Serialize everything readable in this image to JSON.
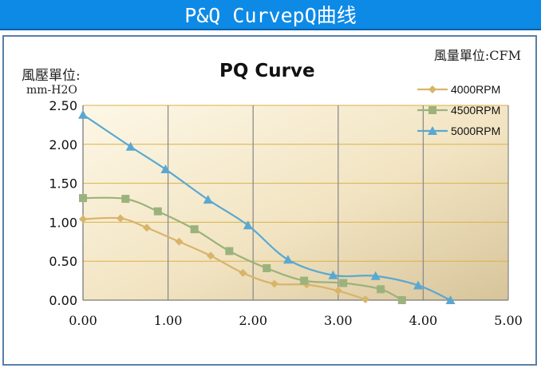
{
  "header": {
    "title": "P&Q CurvepQ曲线"
  },
  "chart_data": {
    "type": "line",
    "title": "PQ Curve",
    "ylabel_line1": "風壓單位:",
    "ylabel_line2": "mm-H2O",
    "unit_label": "風量單位:CFM",
    "xlim": [
      0,
      5
    ],
    "ylim": [
      0,
      2.5
    ],
    "x_ticks": [
      "0.00",
      "1.00",
      "2.00",
      "3.00",
      "4.00",
      "5.00"
    ],
    "y_ticks": [
      "0.00",
      "0.50",
      "1.00",
      "1.50",
      "2.00",
      "2.50"
    ],
    "legend_position": "top-right",
    "series": [
      {
        "name": "4000RPM",
        "color": "#d8b46a",
        "marker": "diamond",
        "x": [
          0.0,
          0.44,
          0.75,
          1.13,
          1.5,
          1.88,
          2.25,
          2.63,
          3.0,
          3.32
        ],
        "y": [
          1.04,
          1.05,
          0.93,
          0.75,
          0.57,
          0.35,
          0.21,
          0.2,
          0.12,
          0.01
        ]
      },
      {
        "name": "4500RPM",
        "color": "#9cb27c",
        "marker": "square",
        "x": [
          0.0,
          0.5,
          0.88,
          1.31,
          1.72,
          2.16,
          2.6,
          3.06,
          3.5,
          3.75
        ],
        "y": [
          1.31,
          1.3,
          1.14,
          0.91,
          0.63,
          0.41,
          0.25,
          0.22,
          0.14,
          0.0
        ]
      },
      {
        "name": "5000RPM",
        "color": "#5aa8d2",
        "marker": "triangle",
        "x": [
          0.0,
          0.56,
          0.97,
          1.47,
          1.94,
          2.41,
          2.94,
          3.44,
          3.94,
          4.32
        ],
        "y": [
          2.38,
          1.97,
          1.68,
          1.29,
          0.96,
          0.52,
          0.32,
          0.31,
          0.19,
          0.0
        ]
      }
    ]
  }
}
